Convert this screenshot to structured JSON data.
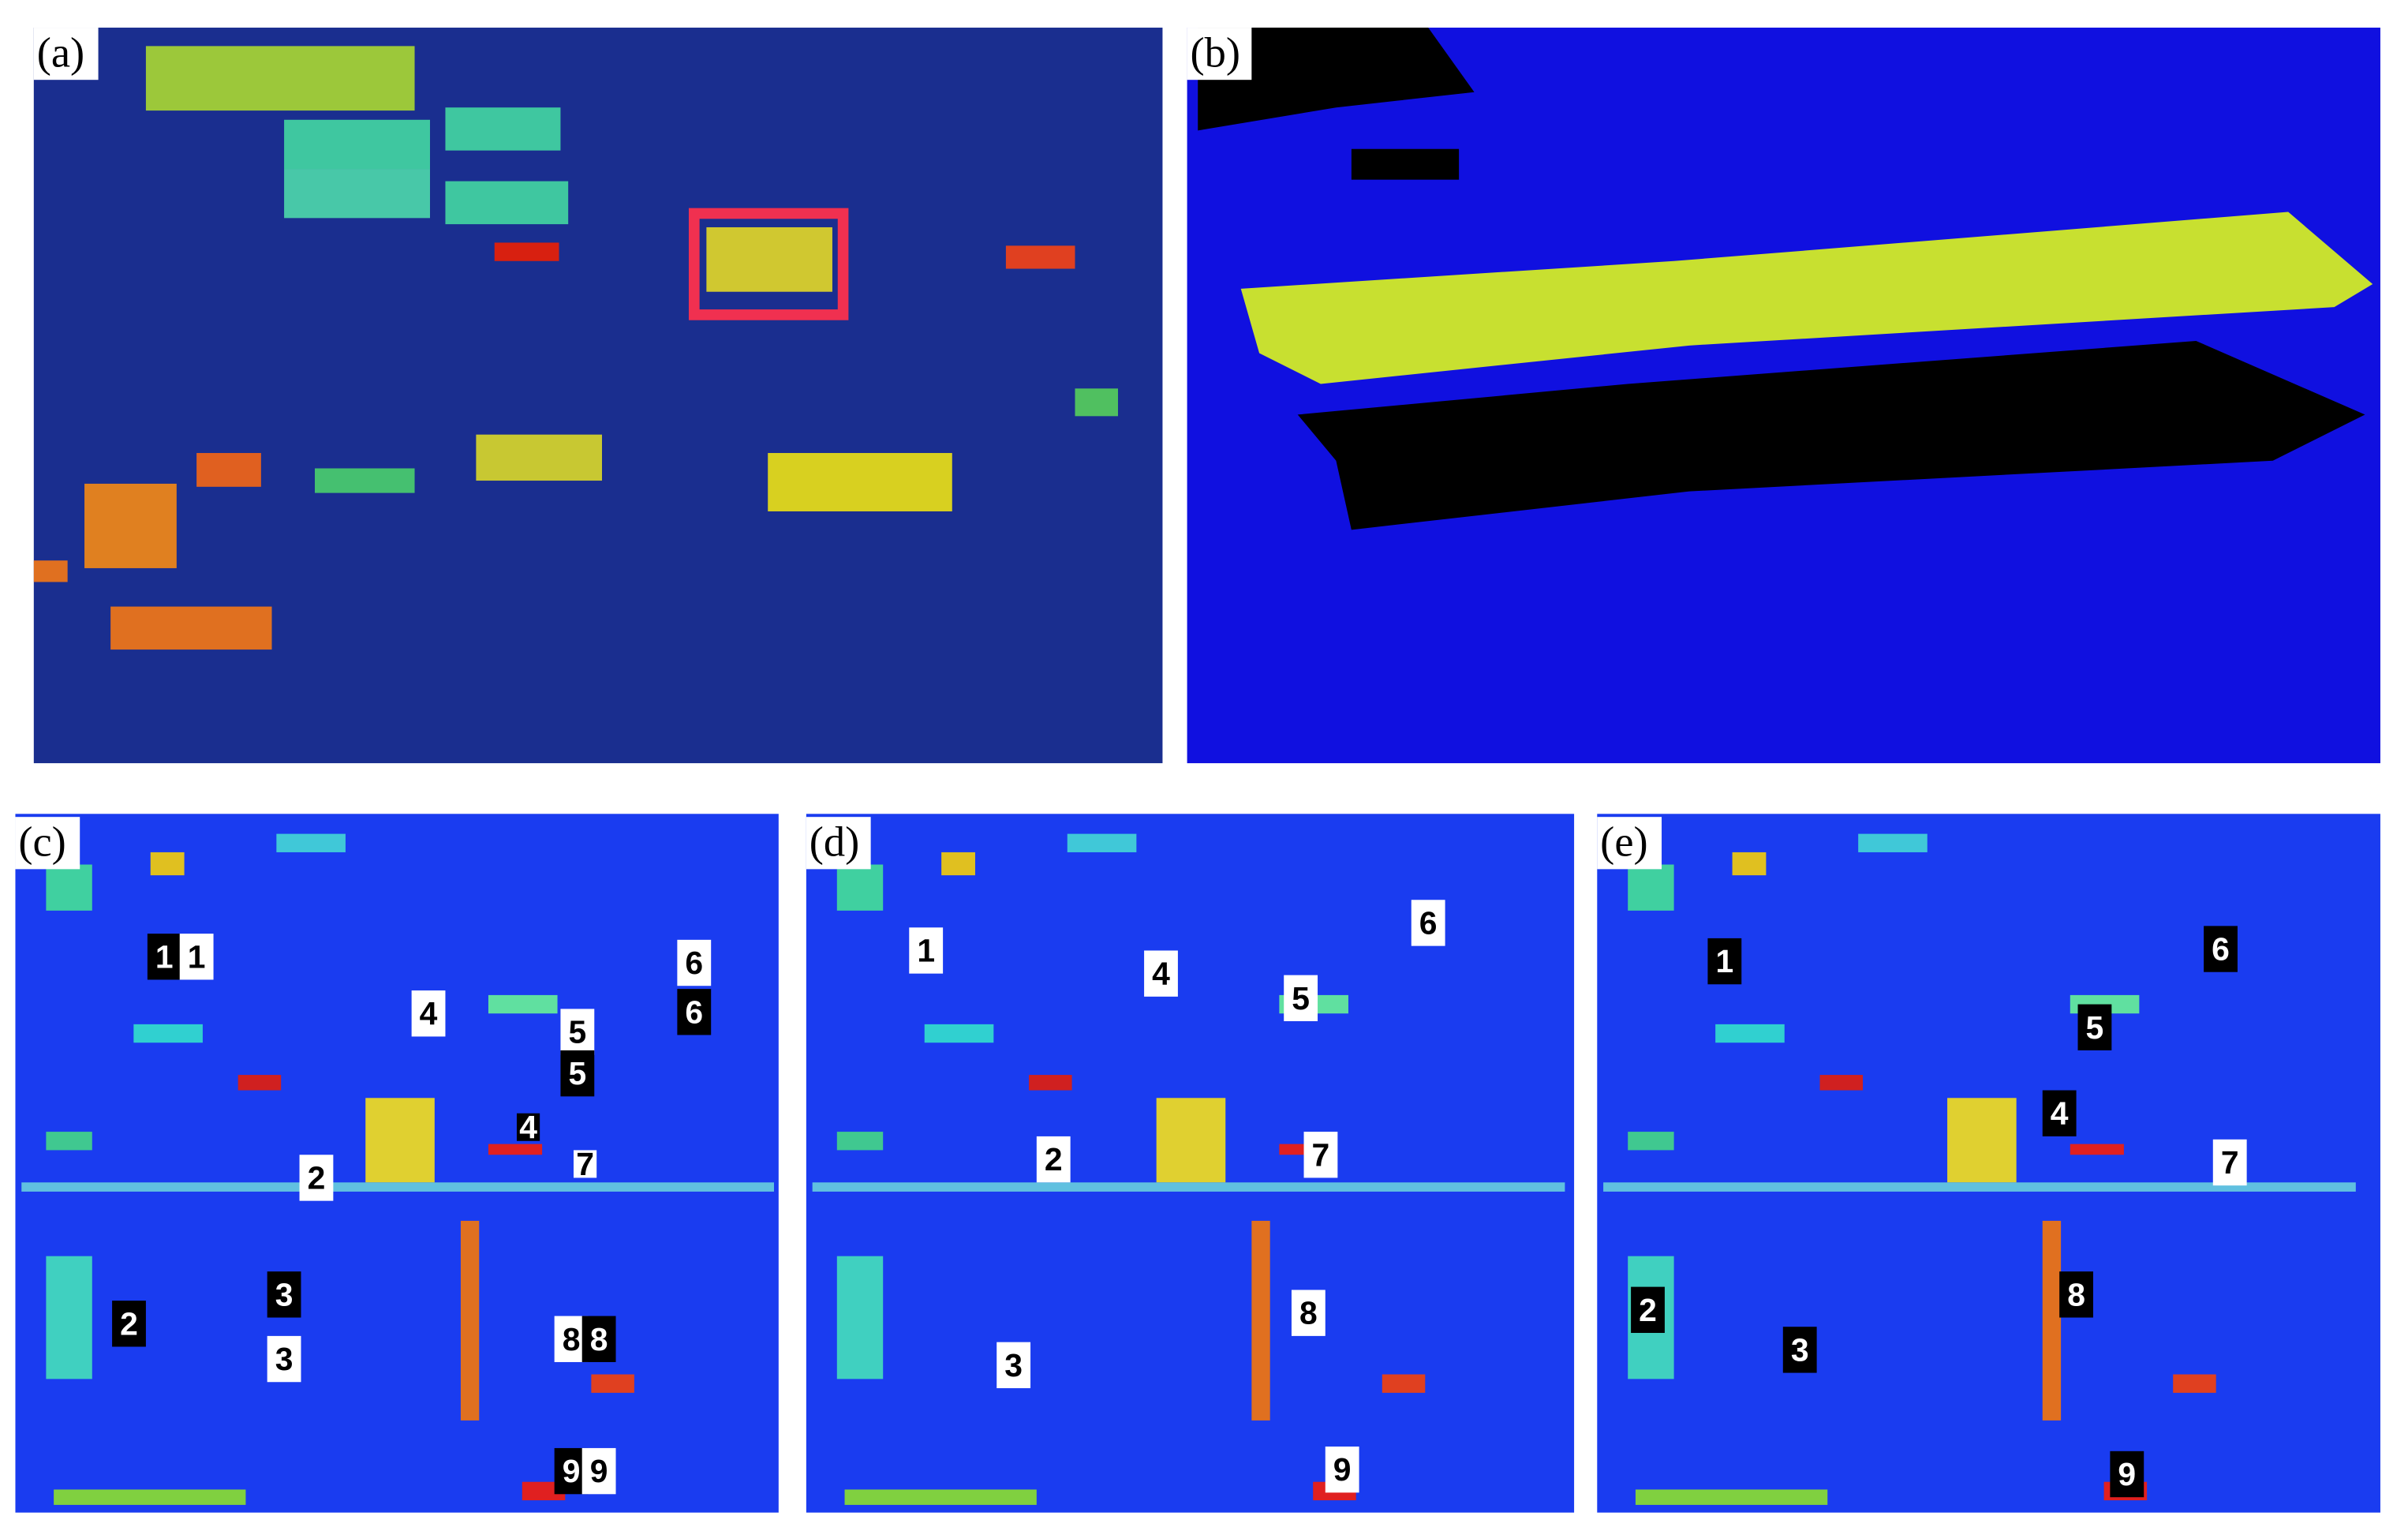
{
  "panels": [
    {
      "label": "(a)"
    },
    {
      "label": "(b)"
    },
    {
      "label": "(c)",
      "markers": [
        "1",
        "1",
        "4",
        "5",
        "5",
        "6",
        "6",
        "4",
        "7",
        "2",
        "3",
        "3",
        "2",
        "8",
        "8",
        "9",
        "9"
      ]
    },
    {
      "label": "(d)",
      "markers": [
        "1",
        "4",
        "5",
        "6",
        "2",
        "7",
        "8",
        "3",
        "9"
      ]
    },
    {
      "label": "(e)",
      "markers": [
        "1",
        "6",
        "5",
        "4",
        "7",
        "2",
        "3",
        "8",
        "9"
      ]
    }
  ]
}
